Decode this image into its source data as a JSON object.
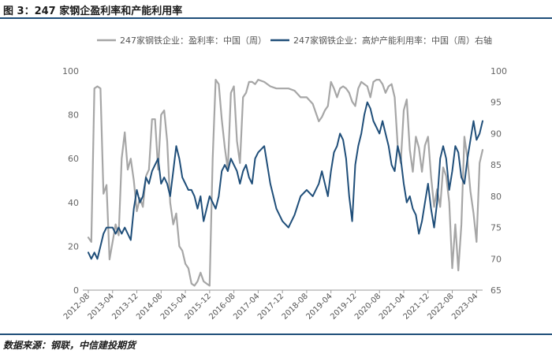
{
  "figure_title": "图 3：247 家钢企盈利率和产能利用率",
  "source_text": "数据来源：钢联，中信建投期货",
  "chart_data": {
    "type": "line",
    "legend_position": "top",
    "grid": false,
    "x_tick_labels": [
      "2012-08",
      "2013-04",
      "2013-12",
      "2014-08",
      "2015-04",
      "2015-12",
      "2016-08",
      "2017-04",
      "2017-12",
      "2018-08",
      "2019-04",
      "2019-12",
      "2020-08",
      "2021-04",
      "2021-12",
      "2022-08",
      "2023-04"
    ],
    "x_range": [
      "2012-08",
      "2023-06"
    ],
    "left_axis": {
      "range": [
        0,
        100
      ],
      "ticks": [
        0,
        20,
        40,
        60,
        80,
        100
      ]
    },
    "right_axis": {
      "range": [
        65,
        100
      ],
      "ticks": [
        65,
        70,
        75,
        80,
        85,
        90,
        95,
        100
      ]
    },
    "series": [
      {
        "name": "247家钢铁企业：盈利率：中国（周）",
        "axis": "left",
        "color": "#a6a6a6",
        "x": [
          "2012-08",
          "2012-09",
          "2012-10",
          "2012-11",
          "2012-12",
          "2013-01",
          "2013-02",
          "2013-03",
          "2013-04",
          "2013-05",
          "2013-06",
          "2013-07",
          "2013-08",
          "2013-09",
          "2013-10",
          "2013-11",
          "2013-12",
          "2014-01",
          "2014-02",
          "2014-03",
          "2014-04",
          "2014-05",
          "2014-06",
          "2014-07",
          "2014-08",
          "2014-09",
          "2014-10",
          "2014-11",
          "2014-12",
          "2015-01",
          "2015-02",
          "2015-03",
          "2015-04",
          "2015-05",
          "2015-06",
          "2015-07",
          "2015-08",
          "2015-09",
          "2015-10",
          "2015-11",
          "2015-12",
          "2016-01",
          "2016-02",
          "2016-03",
          "2016-04",
          "2016-05",
          "2016-06",
          "2016-07",
          "2016-08",
          "2016-09",
          "2016-10",
          "2016-11",
          "2016-12",
          "2017-01",
          "2017-02",
          "2017-03",
          "2017-04",
          "2017-06",
          "2017-08",
          "2017-10",
          "2017-12",
          "2018-02",
          "2018-04",
          "2018-06",
          "2018-08",
          "2018-10",
          "2018-12",
          "2019-01",
          "2019-02",
          "2019-03",
          "2019-04",
          "2019-05",
          "2019-06",
          "2019-07",
          "2019-08",
          "2019-09",
          "2019-10",
          "2019-11",
          "2019-12",
          "2020-01",
          "2020-02",
          "2020-03",
          "2020-04",
          "2020-05",
          "2020-06",
          "2020-07",
          "2020-08",
          "2020-09",
          "2020-10",
          "2020-11",
          "2020-12",
          "2021-01",
          "2021-02",
          "2021-03",
          "2021-04",
          "2021-05",
          "2021-06",
          "2021-07",
          "2021-08",
          "2021-09",
          "2021-10",
          "2021-11",
          "2021-12",
          "2022-01",
          "2022-02",
          "2022-03",
          "2022-04",
          "2022-05",
          "2022-06",
          "2022-07",
          "2022-08",
          "2022-09",
          "2022-10",
          "2022-11",
          "2022-12",
          "2023-01",
          "2023-02",
          "2023-03",
          "2023-04",
          "2023-05",
          "2023-06"
        ],
        "values": [
          24,
          22,
          92,
          93,
          92,
          44,
          48,
          14,
          22,
          30,
          25,
          60,
          72,
          55,
          60,
          50,
          36,
          42,
          38,
          52,
          55,
          78,
          78,
          55,
          80,
          82,
          68,
          40,
          30,
          35,
          20,
          18,
          12,
          10,
          3,
          2,
          4,
          8,
          4,
          3,
          2,
          60,
          96,
          94,
          78,
          65,
          55,
          90,
          93,
          68,
          58,
          88,
          90,
          95,
          95,
          94,
          96,
          95,
          93,
          92,
          92,
          92,
          91,
          88,
          88,
          85,
          77,
          79,
          82,
          84,
          95,
          92,
          88,
          92,
          93,
          92,
          90,
          86,
          84,
          92,
          95,
          94,
          93,
          88,
          95,
          96,
          96,
          94,
          90,
          93,
          94,
          88,
          66,
          58,
          82,
          87,
          64,
          54,
          70,
          65,
          54,
          66,
          70,
          52,
          38,
          46,
          38,
          56,
          52,
          40,
          10,
          30,
          9,
          30,
          70,
          60,
          45,
          35,
          22,
          58,
          64
        ]
      },
      {
        "name": "247家钢铁企业：高炉产能利用率：中国（周）右轴",
        "axis": "right",
        "color": "#1f4e79",
        "x": [
          "2012-08",
          "2012-09",
          "2012-10",
          "2012-11",
          "2012-12",
          "2013-01",
          "2013-02",
          "2013-03",
          "2013-04",
          "2013-05",
          "2013-06",
          "2013-07",
          "2013-08",
          "2013-09",
          "2013-10",
          "2013-11",
          "2013-12",
          "2014-01",
          "2014-02",
          "2014-03",
          "2014-04",
          "2014-05",
          "2014-06",
          "2014-07",
          "2014-08",
          "2014-09",
          "2014-10",
          "2014-11",
          "2014-12",
          "2015-01",
          "2015-02",
          "2015-03",
          "2015-04",
          "2015-05",
          "2015-06",
          "2015-07",
          "2015-08",
          "2015-09",
          "2015-10",
          "2015-11",
          "2015-12",
          "2016-01",
          "2016-02",
          "2016-03",
          "2016-04",
          "2016-05",
          "2016-06",
          "2016-07",
          "2016-08",
          "2016-09",
          "2016-10",
          "2016-11",
          "2016-12",
          "2017-01",
          "2017-02",
          "2017-03",
          "2017-04",
          "2017-06",
          "2017-08",
          "2017-10",
          "2017-12",
          "2018-02",
          "2018-04",
          "2018-06",
          "2018-08",
          "2018-10",
          "2018-12",
          "2019-01",
          "2019-02",
          "2019-03",
          "2019-04",
          "2019-05",
          "2019-06",
          "2019-07",
          "2019-08",
          "2019-09",
          "2019-10",
          "2019-11",
          "2019-12",
          "2020-01",
          "2020-02",
          "2020-03",
          "2020-04",
          "2020-05",
          "2020-06",
          "2020-07",
          "2020-08",
          "2020-09",
          "2020-10",
          "2020-11",
          "2020-12",
          "2021-01",
          "2021-02",
          "2021-03",
          "2021-04",
          "2021-05",
          "2021-06",
          "2021-07",
          "2021-08",
          "2021-09",
          "2021-10",
          "2021-11",
          "2021-12",
          "2022-01",
          "2022-02",
          "2022-03",
          "2022-04",
          "2022-05",
          "2022-06",
          "2022-07",
          "2022-08",
          "2022-09",
          "2022-10",
          "2022-11",
          "2022-12",
          "2023-01",
          "2023-02",
          "2023-03",
          "2023-04",
          "2023-05",
          "2023-06"
        ],
        "values": [
          71,
          70,
          71,
          70,
          72,
          74,
          75,
          75,
          75,
          74,
          75,
          74,
          75,
          74,
          73,
          78,
          81,
          79,
          80,
          83,
          82,
          84,
          85,
          86,
          82,
          83,
          82,
          80,
          84,
          88,
          86,
          83,
          82,
          81,
          81,
          80,
          78,
          80,
          76,
          78,
          80,
          79,
          78,
          80,
          84,
          85,
          84,
          86,
          85,
          84,
          82,
          84,
          85,
          83,
          82,
          86,
          87,
          88,
          82,
          78,
          76,
          75,
          77,
          80,
          81,
          80,
          82,
          84,
          82,
          80,
          84,
          87,
          88,
          90,
          89,
          86,
          80,
          76,
          85,
          88,
          90,
          93,
          95,
          94,
          92,
          91,
          90,
          92,
          90,
          88,
          85,
          84,
          88,
          86,
          82,
          79,
          80,
          78,
          77,
          74,
          76,
          79,
          82,
          78,
          75,
          79,
          86,
          88,
          86,
          81,
          84,
          88,
          87,
          83,
          82,
          86,
          89,
          92,
          89,
          90,
          92
        ]
      }
    ]
  }
}
